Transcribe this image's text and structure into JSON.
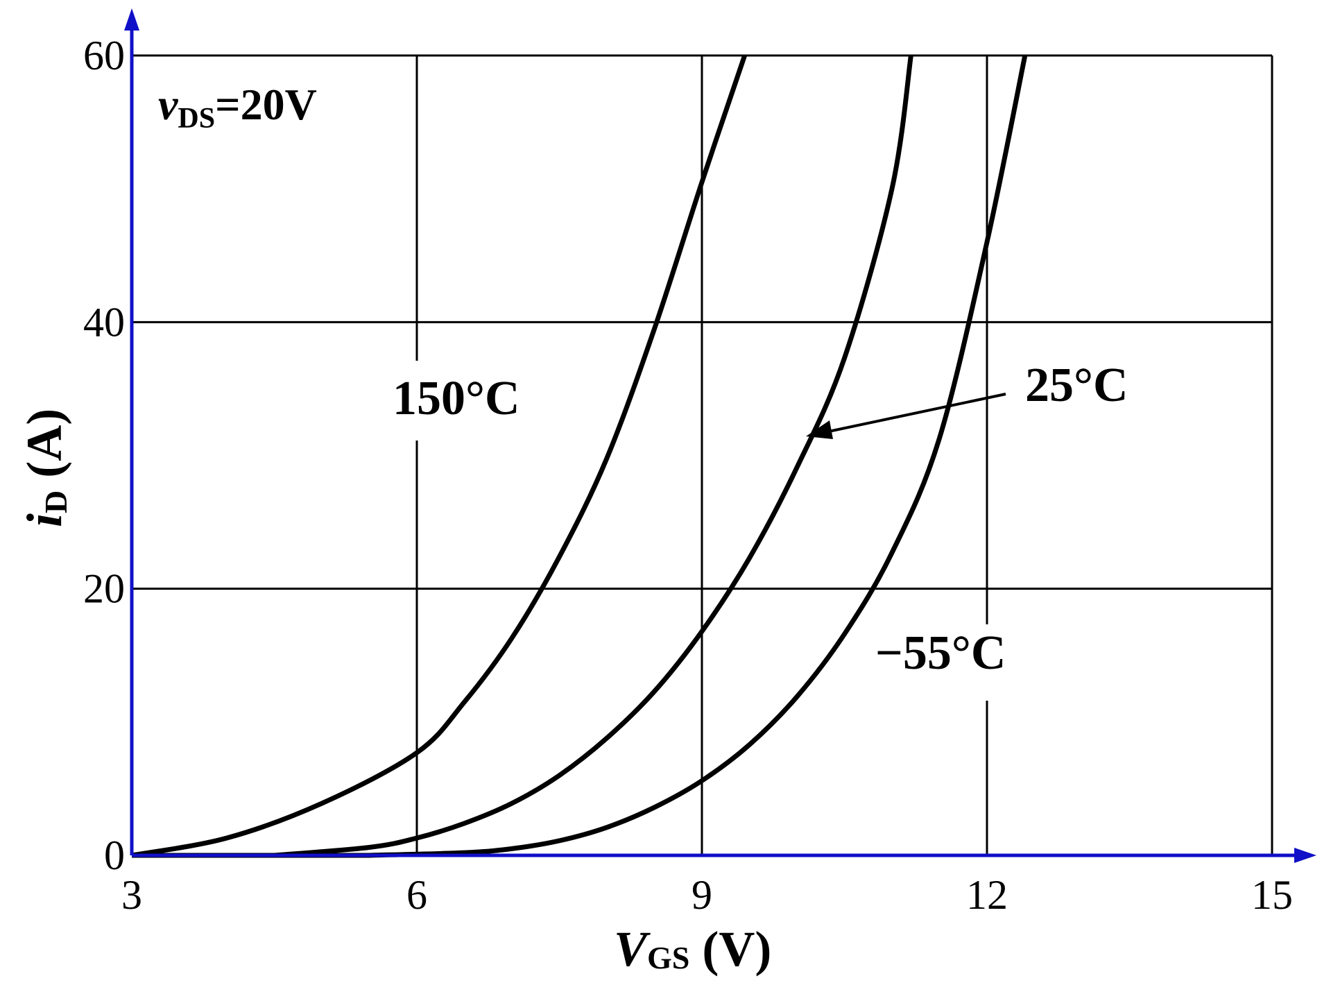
{
  "chart_data": {
    "type": "line",
    "xlabel_main": "V",
    "xlabel_sub": "GS",
    "xlabel_unit": " (V)",
    "ylabel_main": "i",
    "ylabel_sub": "D",
    "ylabel_unit": " (A)",
    "condition_main": "v",
    "condition_sub": "DS",
    "condition_value": "=20V",
    "xlim": [
      3,
      15
    ],
    "ylim": [
      0,
      60
    ],
    "xticks": [
      "3",
      "6",
      "9",
      "12",
      "15"
    ],
    "yticks": [
      "0",
      "20",
      "40",
      "60"
    ],
    "grid": true,
    "axis_color": "#1010c8",
    "series": [
      {
        "name": "150°C",
        "x": [
          3.0,
          4.0,
          5.0,
          6.0,
          6.5,
          7.0,
          7.5,
          8.0,
          8.5,
          9.0,
          9.45
        ],
        "y": [
          0,
          1.3,
          3.9,
          7.7,
          11.5,
          16.3,
          22.4,
          29.8,
          39.5,
          50.5,
          60
        ]
      },
      {
        "name": "25°C",
        "x": [
          4.5,
          5.5,
          6.0,
          6.5,
          7.0,
          7.5,
          8.0,
          8.5,
          9.0,
          9.5,
          10.0,
          10.5,
          11.0,
          11.2
        ],
        "y": [
          0,
          0.6,
          1.3,
          2.4,
          3.9,
          6.0,
          8.8,
          12.3,
          16.8,
          22.3,
          29.1,
          37.3,
          50.0,
          60
        ]
      },
      {
        "name": "−55°C",
        "x": [
          5.5,
          6.5,
          7.0,
          7.5,
          8.0,
          8.5,
          9.0,
          9.5,
          10.0,
          10.5,
          11.0,
          11.5,
          12.0,
          12.4
        ],
        "y": [
          0,
          0.2,
          0.5,
          1.1,
          2.1,
          3.6,
          5.6,
          8.3,
          11.9,
          16.6,
          22.7,
          31.3,
          46.0,
          60
        ]
      }
    ]
  }
}
